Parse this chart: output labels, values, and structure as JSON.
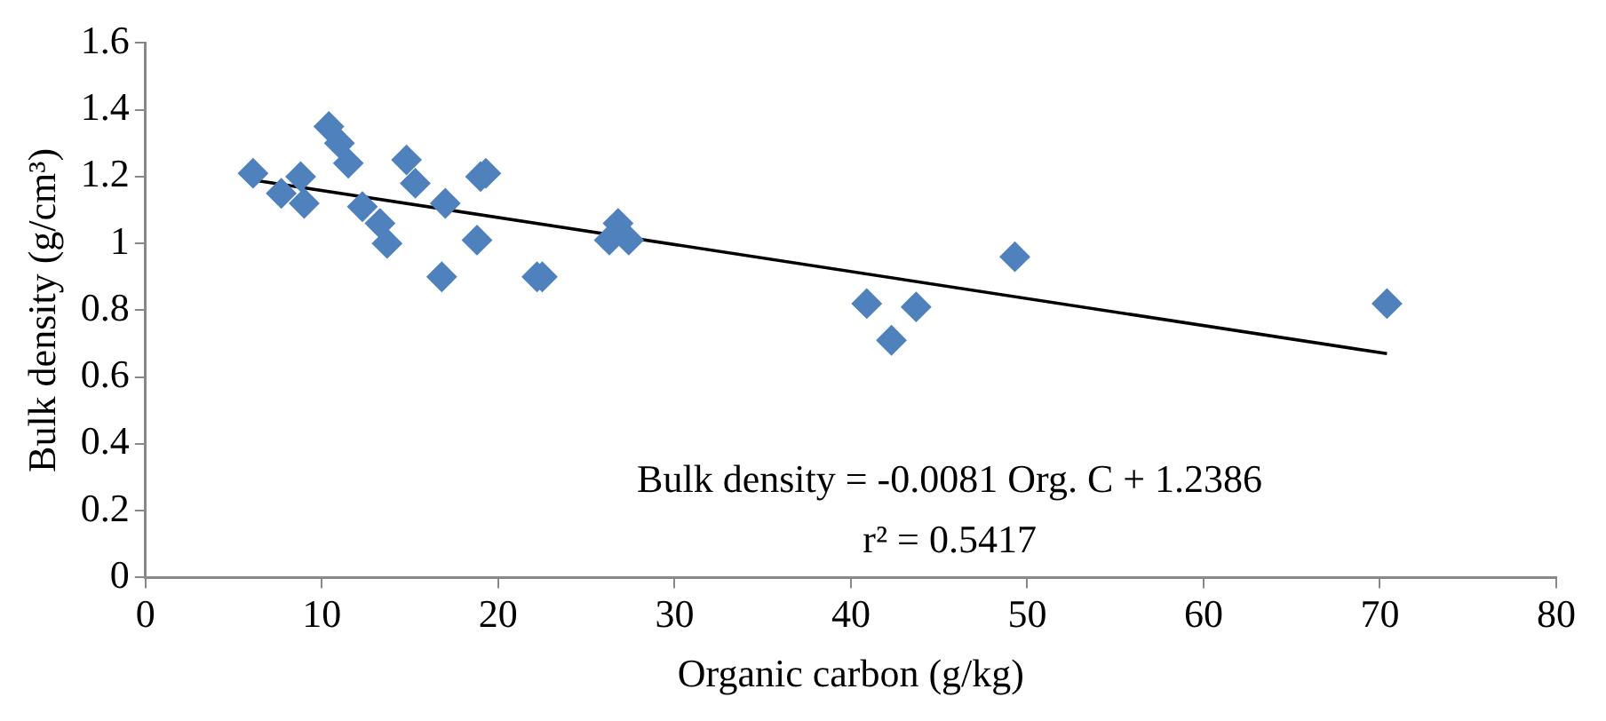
{
  "chart_data": {
    "type": "scatter",
    "xlabel": "Organic carbon (g/kg)",
    "ylabel": "Bulk density (g/cm³)",
    "series": [
      {
        "type": "scatter",
        "color": "#4f81bd",
        "marker": "diamond",
        "x": [
          6.1,
          7.7,
          8.8,
          9.0,
          10.4,
          11.0,
          11.5,
          12.3,
          13.3,
          13.7,
          14.8,
          15.3,
          16.8,
          17.0,
          18.8,
          19.0,
          19.3,
          22.2,
          22.5,
          26.3,
          26.8,
          27.4,
          40.9,
          42.3,
          43.7,
          49.3,
          70.4
        ],
        "values": [
          1.21,
          1.15,
          1.2,
          1.12,
          1.35,
          1.3,
          1.24,
          1.11,
          1.06,
          1.0,
          1.25,
          1.18,
          0.9,
          1.12,
          1.01,
          1.2,
          1.21,
          0.9,
          0.9,
          1.01,
          1.06,
          1.01,
          0.82,
          0.71,
          0.81,
          0.96,
          0.82
        ]
      },
      {
        "type": "line",
        "color": "#000000",
        "marker": "none",
        "line_style": "solid",
        "x": [
          6.1,
          70.4
        ],
        "values": [
          1.19,
          0.67
        ]
      }
    ],
    "annotations": [
      "Bulk density = -0.0081 Org. C + 1.2386",
      "r² = 0.5417"
    ],
    "xlim": [
      0,
      80
    ],
    "xticks": [
      0,
      10,
      20,
      30,
      40,
      50,
      60,
      70,
      80
    ],
    "ylim": [
      0,
      1.6
    ],
    "yticks": [
      0,
      0.2,
      0.4,
      0.6,
      0.8,
      1,
      1.2,
      1.4,
      1.6
    ],
    "grid": false,
    "legend": false
  }
}
